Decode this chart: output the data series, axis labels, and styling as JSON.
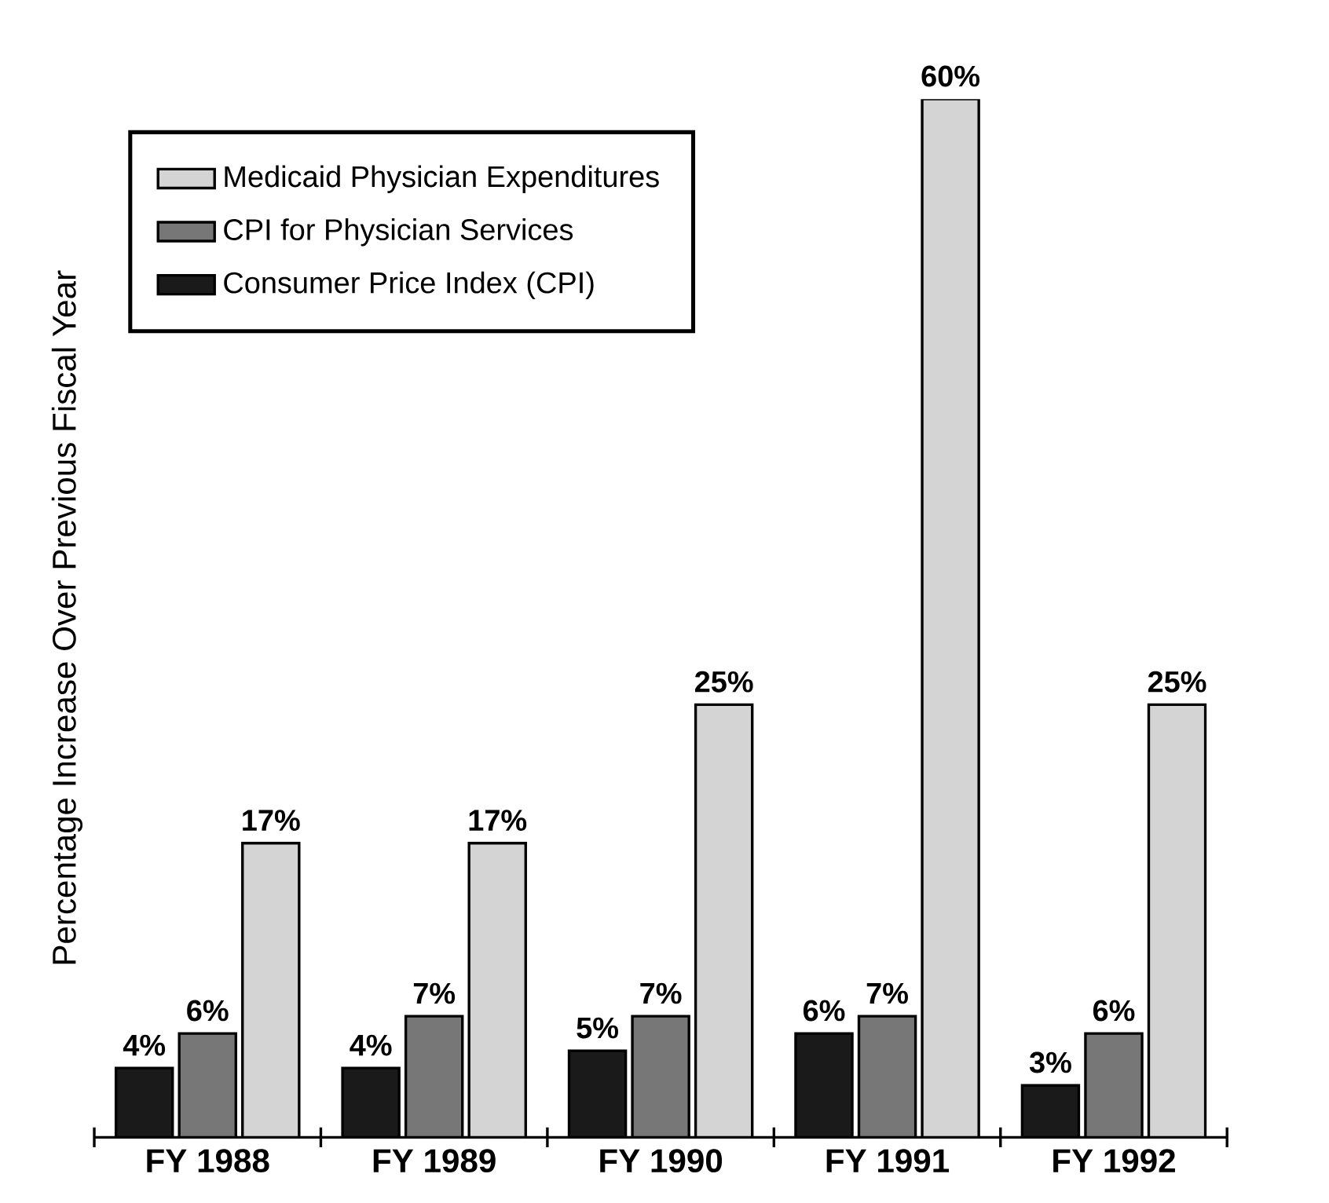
{
  "chart_data": {
    "type": "bar",
    "ylabel": "Percentage Increase Over Previous Fiscal Year",
    "categories": [
      "FY 1988",
      "FY 1989",
      "FY 1990",
      "FY 1991",
      "FY 1992"
    ],
    "series": [
      {
        "name": "Consumer Price Index (CPI)",
        "color": "#1a1a1a",
        "values": [
          4,
          4,
          5,
          6,
          3
        ],
        "value_labels": [
          "4%",
          "4%",
          "5%",
          "6%",
          "3%"
        ]
      },
      {
        "name": "CPI for Physician Services",
        "color": "#777777",
        "values": [
          6,
          7,
          7,
          7,
          6
        ],
        "value_labels": [
          "6%",
          "7%",
          "7%",
          "7%",
          "6%"
        ]
      },
      {
        "name": "Medicaid Physician Expenditures",
        "color": "#d4d4d4",
        "values": [
          17,
          17,
          25,
          60,
          25
        ],
        "value_labels": [
          "17%",
          "17%",
          "25%",
          "60%",
          "25%"
        ]
      }
    ],
    "legend": "top left",
    "grid": false
  }
}
